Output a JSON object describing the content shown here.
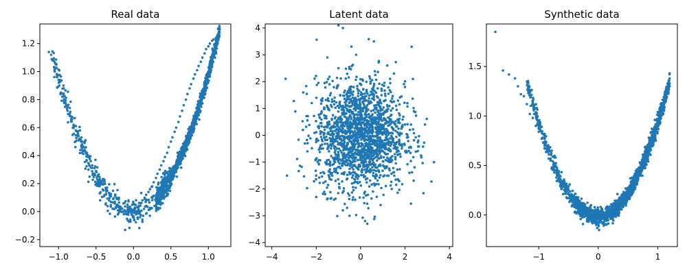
{
  "figure": {
    "background": "#ffffff",
    "point_color": "#1f77b4"
  },
  "chart_data": [
    {
      "type": "scatter",
      "title": "Real data",
      "xlabel": "",
      "ylabel": "",
      "xlim": [
        -1.25,
        1.3
      ],
      "ylim": [
        -0.25,
        1.34
      ],
      "xticks": [
        -1.0,
        -0.5,
        0.0,
        0.5,
        1.0
      ],
      "xtick_labels": [
        "−1.0",
        "−0.5",
        "0.0",
        "0.5",
        "1.0"
      ],
      "yticks": [
        -0.2,
        0.0,
        0.2,
        0.4,
        0.6,
        0.8,
        1.0,
        1.2
      ],
      "ytick_labels": [
        "−0.2",
        "0.0",
        "0.2",
        "0.4",
        "0.6",
        "0.8",
        "1.0",
        "1.2"
      ],
      "grid": false,
      "series": [
        {
          "color": "#1f77b4",
          "x": [
            -1.13,
            -1.1,
            -1.08,
            -1.06,
            -1.05,
            -1.03,
            -1.02,
            -1.0,
            -0.99,
            -0.97,
            -0.95,
            -0.93,
            -0.9,
            -0.88,
            -0.85,
            -0.82,
            -0.8,
            -0.77,
            -0.74,
            -0.72,
            -0.7,
            -0.68,
            -0.65,
            -0.62,
            -0.6,
            -0.57,
            -0.55,
            -0.52,
            -0.5,
            -0.47,
            -0.45,
            -0.42,
            -0.4,
            -0.37,
            -0.35,
            -0.32,
            -0.3,
            -0.27,
            -0.25,
            -0.22,
            -0.2,
            -0.17,
            -0.15,
            -0.12,
            -0.1,
            -0.07,
            -0.05,
            -0.02,
            0.0,
            0.02,
            0.05,
            0.07,
            0.1,
            0.12,
            0.15,
            0.17,
            0.2,
            0.22,
            0.25,
            0.27,
            0.3,
            0.32,
            0.35,
            0.37,
            0.4,
            0.42,
            0.45,
            0.47,
            0.5,
            0.52,
            0.55,
            0.57,
            0.6,
            0.62,
            0.65,
            0.67,
            0.7,
            0.72,
            0.75,
            0.77,
            0.8,
            0.82,
            0.85,
            0.87,
            0.9,
            0.92,
            0.95,
            0.97,
            1.0,
            1.02,
            1.05,
            1.07,
            1.1,
            1.12
          ],
          "y": [
            1.14,
            1.12,
            1.08,
            1.03,
            1.0,
            1.05,
            0.96,
            0.94,
            0.9,
            0.85,
            0.82,
            0.79,
            0.76,
            0.72,
            0.7,
            0.66,
            0.62,
            0.58,
            0.55,
            0.52,
            0.5,
            0.47,
            0.44,
            0.42,
            0.39,
            0.36,
            0.33,
            0.31,
            0.29,
            0.26,
            0.23,
            0.22,
            0.2,
            0.17,
            0.15,
            0.13,
            0.11,
            0.09,
            0.07,
            0.05,
            0.04,
            0.03,
            0.02,
            0.01,
            0.0,
            -0.01,
            0.0,
            0.0,
            0.01,
            0.02,
            0.03,
            0.04,
            0.06,
            0.08,
            0.1,
            0.12,
            0.14,
            0.16,
            0.18,
            0.21,
            0.24,
            0.27,
            0.3,
            0.33,
            0.36,
            0.39,
            0.42,
            0.46,
            0.5,
            0.53,
            0.57,
            0.6,
            0.64,
            0.68,
            0.72,
            0.76,
            0.8,
            0.84,
            0.88,
            0.91,
            0.95,
            0.98,
            1.01,
            1.04,
            1.07,
            1.1,
            1.13,
            1.16,
            1.18,
            1.2,
            1.22,
            1.23,
            1.24,
            1.25
          ]
        }
      ]
    },
    {
      "type": "scatter",
      "title": "Latent data",
      "xlabel": "",
      "ylabel": "",
      "xlim": [
        -4.3,
        4.15
      ],
      "ylim": [
        -4.15,
        4.15
      ],
      "xticks": [
        -4,
        -2,
        0,
        2,
        4
      ],
      "xtick_labels": [
        "−4",
        "−2",
        "0",
        "2",
        "4"
      ],
      "yticks": [
        -4,
        -3,
        -2,
        -1,
        0,
        1,
        2,
        3,
        4
      ],
      "ytick_labels": [
        "−4",
        "−3",
        "−2",
        "−1",
        "0",
        "1",
        "2",
        "3",
        "4"
      ],
      "grid": false,
      "series": [
        {
          "color": "#1f77b4",
          "x": [
            -2.6,
            -2.4,
            -2.2,
            -2.0,
            -1.8,
            -1.6,
            -1.4,
            -1.2,
            -1.0,
            -0.8,
            -0.6,
            -0.4,
            -0.2,
            0.0,
            0.2,
            0.4,
            0.6,
            0.8,
            1.0,
            1.2,
            1.4,
            1.6,
            1.8,
            2.0,
            2.2,
            2.4,
            2.6,
            2.9,
            -1.0,
            -0.8,
            0.6,
            2.3,
            -2.0,
            -1.5,
            1.5,
            2.0,
            -0.5,
            0.3,
            0.9,
            -1.2
          ],
          "y": [
            0.2,
            -0.6,
            1.2,
            -1.5,
            0.8,
            -2.2,
            1.9,
            -0.9,
            2.5,
            -2.8,
            1.4,
            -1.2,
            3.0,
            0.0,
            -3.2,
            2.2,
            -1.8,
            0.6,
            -0.4,
            2.6,
            -2.0,
            1.1,
            -0.8,
            0.4,
            -1.4,
            0.9,
            -0.2,
            0.4,
            4.1,
            4.0,
            3.5,
            3.3,
            -2.3,
            2.9,
            2.3,
            1.8,
            -3.0,
            -3.3,
            -2.6,
            -2.4
          ]
        }
      ]
    },
    {
      "type": "scatter",
      "title": "Synthetic data",
      "xlabel": "",
      "ylabel": "",
      "xlim": [
        -1.88,
        1.33
      ],
      "ylim": [
        -0.32,
        1.93
      ],
      "xticks": [
        -1,
        0,
        1
      ],
      "xtick_labels": [
        "−1",
        "0",
        "1"
      ],
      "yticks": [
        0.0,
        0.5,
        1.0,
        1.5
      ],
      "ytick_labels": [
        "0.0",
        "0.5",
        "1.0",
        "1.5"
      ],
      "grid": false,
      "series": [
        {
          "color": "#1f77b4",
          "x": [
            -1.73,
            -1.6,
            -1.5,
            -1.4,
            -1.35,
            -1.3,
            -1.25,
            -1.2,
            -1.15,
            -1.1,
            -1.05,
            -1.0,
            -0.95,
            -0.9,
            -0.85,
            -0.8,
            -0.75,
            -0.7,
            -0.65,
            -0.6,
            -0.55,
            -0.5,
            -0.45,
            -0.4,
            -0.35,
            -0.3,
            -0.25,
            -0.2,
            -0.15,
            -0.1,
            -0.05,
            0.0,
            0.05,
            0.1,
            0.15,
            0.2,
            0.25,
            0.3,
            0.35,
            0.4,
            0.45,
            0.5,
            0.55,
            0.6,
            0.65,
            0.7,
            0.75,
            0.8,
            0.85,
            0.9,
            0.95,
            1.0,
            1.05,
            1.1,
            1.15,
            1.2
          ],
          "y": [
            1.85,
            1.46,
            1.42,
            1.38,
            1.3,
            1.22,
            1.2,
            1.12,
            1.02,
            0.98,
            0.9,
            0.84,
            0.77,
            0.7,
            0.64,
            0.57,
            0.51,
            0.45,
            0.4,
            0.34,
            0.3,
            0.25,
            0.21,
            0.17,
            0.14,
            0.1,
            0.08,
            0.05,
            0.04,
            0.02,
            0.01,
            0.0,
            0.0,
            0.01,
            0.02,
            0.04,
            0.06,
            0.09,
            0.13,
            0.17,
            0.22,
            0.27,
            0.33,
            0.39,
            0.46,
            0.53,
            0.61,
            0.69,
            0.78,
            0.87,
            0.96,
            1.04,
            1.12,
            1.19,
            1.25,
            1.3
          ]
        }
      ]
    }
  ]
}
